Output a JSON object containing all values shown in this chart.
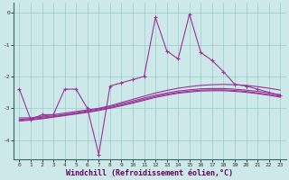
{
  "xlabel": "Windchill (Refroidissement éolien,°C)",
  "bg_color": "#cce8e8",
  "grid_color": "#99cccc",
  "line_color": "#993399",
  "ylim": [
    -4.6,
    0.3
  ],
  "xlim": [
    -0.5,
    23.5
  ],
  "yticks": [
    0,
    -1,
    -2,
    -3,
    -4
  ],
  "xticks": [
    0,
    1,
    2,
    3,
    4,
    5,
    6,
    7,
    8,
    9,
    10,
    11,
    12,
    13,
    14,
    15,
    16,
    17,
    18,
    19,
    20,
    21,
    22,
    23
  ],
  "main_series": [
    -2.4,
    -3.35,
    -3.2,
    -3.2,
    -2.4,
    -2.4,
    -3.0,
    -4.45,
    -2.3,
    -2.2,
    -2.1,
    -2.0,
    -0.15,
    -1.2,
    -1.45,
    -0.05,
    -1.25,
    -1.5,
    -1.85,
    -2.25,
    -2.3,
    -2.4,
    -2.5,
    -2.6
  ],
  "smooth1": [
    -3.3,
    -3.3,
    -3.25,
    -3.2,
    -3.15,
    -3.1,
    -3.05,
    -3.0,
    -2.92,
    -2.82,
    -2.72,
    -2.62,
    -2.52,
    -2.44,
    -2.37,
    -2.32,
    -2.28,
    -2.26,
    -2.25,
    -2.26,
    -2.28,
    -2.32,
    -2.37,
    -2.43
  ],
  "smooth2": [
    -3.35,
    -3.32,
    -3.28,
    -3.24,
    -3.19,
    -3.14,
    -3.08,
    -3.02,
    -2.95,
    -2.86,
    -2.77,
    -2.68,
    -2.59,
    -2.52,
    -2.46,
    -2.42,
    -2.39,
    -2.38,
    -2.38,
    -2.4,
    -2.43,
    -2.47,
    -2.52,
    -2.57
  ],
  "smooth3": [
    -3.38,
    -3.35,
    -3.31,
    -3.26,
    -3.21,
    -3.16,
    -3.11,
    -3.05,
    -2.98,
    -2.9,
    -2.81,
    -2.72,
    -2.63,
    -2.56,
    -2.5,
    -2.46,
    -2.43,
    -2.42,
    -2.42,
    -2.44,
    -2.47,
    -2.52,
    -2.57,
    -2.62
  ],
  "smooth4": [
    -3.4,
    -3.37,
    -3.33,
    -3.28,
    -3.23,
    -3.18,
    -3.13,
    -3.07,
    -3.0,
    -2.92,
    -2.84,
    -2.75,
    -2.66,
    -2.59,
    -2.53,
    -2.49,
    -2.46,
    -2.45,
    -2.45,
    -2.47,
    -2.5,
    -2.54,
    -2.59,
    -2.65
  ]
}
